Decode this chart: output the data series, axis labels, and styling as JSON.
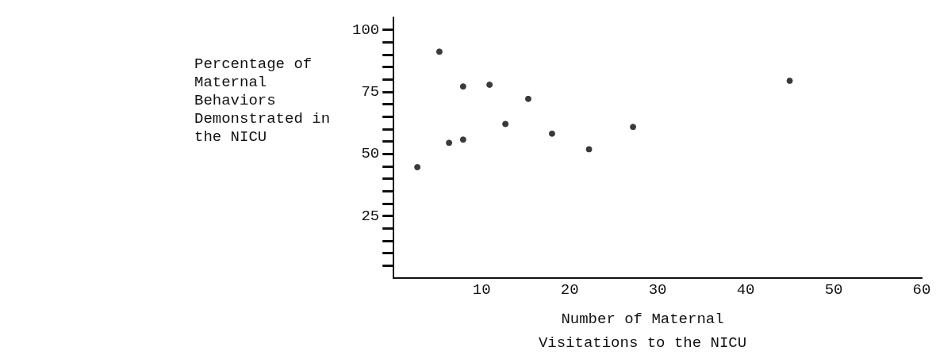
{
  "chart_data": {
    "type": "scatter",
    "xlabel": "Number of Maternal Visitations to the NICU",
    "ylabel": "Percentage of Maternal Behaviors Demonstrated in the NICU",
    "x": [
      2.7,
      5.2,
      6.3,
      7.9,
      7.9,
      10.9,
      12.7,
      15.3,
      18.0,
      22.2,
      27.2,
      45.0
    ],
    "series": [
      {
        "color": "#3a3a3a",
        "values": [
          44.7,
          91.2,
          54.5,
          77.2,
          55.8,
          77.9,
          62.1,
          72.2,
          58.2,
          51.9,
          60.9,
          79.5
        ]
      }
    ],
    "xlim": [
      0,
      60
    ],
    "ylim": [
      0,
      105
    ],
    "xticks": [
      10,
      20,
      30,
      40,
      50,
      60
    ],
    "yticks": [
      {
        "value": 5,
        "label": null
      },
      {
        "value": 10,
        "label": null
      },
      {
        "value": 15,
        "label": null
      },
      {
        "value": 20,
        "label": null
      },
      25,
      {
        "value": 30,
        "label": null
      },
      {
        "value": 35,
        "label": null
      },
      {
        "value": 40,
        "label": null
      },
      {
        "value": 45,
        "label": null
      },
      50,
      {
        "value": 55,
        "label": null
      },
      {
        "value": 60,
        "label": null
      },
      {
        "value": 65,
        "label": null
      },
      {
        "value": 70,
        "label": null
      },
      75,
      {
        "value": 80,
        "label": null
      },
      {
        "value": 85,
        "label": null
      },
      {
        "value": 90,
        "label": null
      },
      {
        "value": 95,
        "label": null
      },
      100
    ],
    "grid": false,
    "legend": false,
    "marker": "circle"
  }
}
